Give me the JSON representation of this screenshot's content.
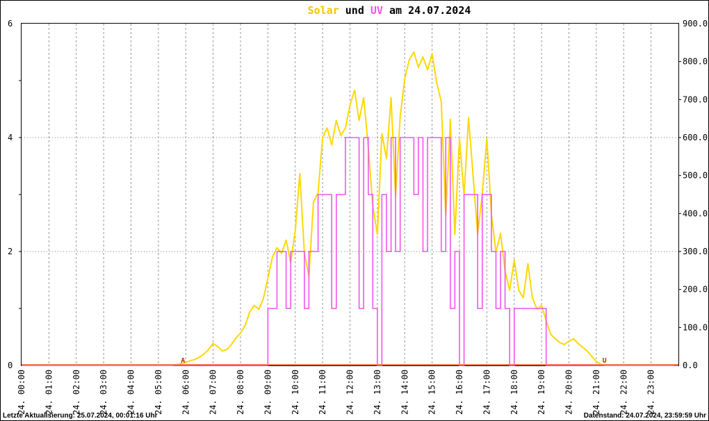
{
  "title": {
    "parts": [
      {
        "text": "Solar",
        "color": "#F5C400"
      },
      {
        "text": " und ",
        "color": "#000000"
      },
      {
        "text": "UV",
        "color": "#EE55EE"
      },
      {
        "text": " am 24.07.2024",
        "color": "#000000"
      }
    ]
  },
  "footer": {
    "left": "Letzte Aktualisierung: 25.07.2024, 00:01:16 Uhr",
    "right": "Datenstand: 24.07.2024, 23:59:59 Uhr"
  },
  "chart_data": {
    "type": "line",
    "title": "Solar und UV am 24.07.2024",
    "x_axis": {
      "range_hours": [
        0,
        24
      ],
      "tick_labels": [
        "24. 00:00",
        "24. 01:00",
        "24. 02:00",
        "24. 03:00",
        "24. 04:00",
        "24. 05:00",
        "24. 06:00",
        "24. 07:00",
        "24. 08:00",
        "24. 09:00",
        "24. 10:00",
        "24. 11:00",
        "24. 12:00",
        "24. 13:00",
        "24. 14:00",
        "24. 15:00",
        "24. 16:00",
        "24. 17:00",
        "24. 18:00",
        "24. 19:00",
        "24. 20:00",
        "24. 21:00",
        "24. 22:00",
        "24. 23:00"
      ]
    },
    "left_axis": {
      "range": [
        0,
        6
      ],
      "ticks": [
        6,
        4,
        2,
        0
      ],
      "minor_ticks": [
        1,
        2,
        3,
        4,
        5
      ],
      "gridlines_at": [
        2,
        4
      ]
    },
    "right_axis": {
      "range": [
        0,
        900
      ],
      "tick_labels": [
        "900.0",
        "800.0",
        "700.0",
        "600.0",
        "500.0",
        "400.0",
        "300.0",
        "200.0",
        "100.0",
        "0.0"
      ],
      "tick_step": 100
    },
    "grid": {
      "vertical_every_hour": true
    },
    "baseline": {
      "value": 0,
      "color": "#FF7853"
    },
    "markers": [
      {
        "label": "A",
        "hour": 5.9,
        "color": "#CC2200"
      },
      {
        "label": "U",
        "hour": 21.3,
        "color": "#CC2200"
      }
    ],
    "series": [
      {
        "name": "Solar",
        "color": "#FFD800",
        "axis": "right",
        "style": "line",
        "interval_minutes": 10,
        "values": [
          0,
          0,
          0,
          0,
          0,
          0,
          0,
          0,
          0,
          0,
          0,
          0,
          0,
          0,
          0,
          0,
          0,
          0,
          0,
          0,
          0,
          0,
          0,
          0,
          0,
          0,
          0,
          0,
          0,
          0,
          0,
          0,
          0,
          0,
          2,
          5,
          8,
          12,
          16,
          22,
          30,
          42,
          58,
          50,
          38,
          42,
          55,
          72,
          85,
          105,
          140,
          158,
          148,
          175,
          230,
          285,
          310,
          295,
          330,
          270,
          355,
          505,
          295,
          235,
          430,
          455,
          600,
          625,
          580,
          645,
          605,
          625,
          685,
          725,
          645,
          705,
          575,
          420,
          345,
          610,
          545,
          705,
          445,
          655,
          755,
          805,
          825,
          785,
          812,
          778,
          820,
          745,
          695,
          395,
          648,
          345,
          598,
          448,
          652,
          498,
          345,
          452,
          598,
          398,
          298,
          348,
          248,
          198,
          278,
          198,
          178,
          268,
          178,
          148,
          158,
          118,
          82,
          70,
          60,
          55,
          64,
          70,
          58,
          48,
          38,
          24,
          10,
          3,
          0,
          0,
          0,
          0,
          0,
          0,
          0,
          0,
          0,
          0,
          0,
          0,
          0,
          0,
          0,
          0
        ]
      },
      {
        "name": "UV",
        "color": "#EE55EE",
        "axis": "left",
        "style": "step",
        "interval_minutes": 10,
        "values": [
          0,
          0,
          0,
          0,
          0,
          0,
          0,
          0,
          0,
          0,
          0,
          0,
          0,
          0,
          0,
          0,
          0,
          0,
          0,
          0,
          0,
          0,
          0,
          0,
          0,
          0,
          0,
          0,
          0,
          0,
          0,
          0,
          0,
          0,
          0,
          0,
          0,
          0,
          0,
          0,
          0,
          0,
          0,
          0,
          0,
          0,
          0,
          0,
          0,
          0,
          0,
          0,
          0,
          0,
          1,
          1,
          2,
          2,
          1,
          2,
          2,
          2,
          1,
          2,
          2,
          3,
          3,
          3,
          1,
          3,
          3,
          4,
          4,
          4,
          1,
          4,
          3,
          1,
          0,
          3,
          2,
          4,
          2,
          4,
          4,
          4,
          3,
          4,
          2,
          4,
          4,
          4,
          2,
          4,
          1,
          2,
          0,
          3,
          3,
          3,
          1,
          3,
          3,
          2,
          1,
          2,
          1,
          0,
          1,
          1,
          1,
          1,
          1,
          1,
          1,
          0,
          0,
          0,
          0,
          0,
          0,
          0,
          0,
          0,
          0,
          0,
          0,
          0,
          0,
          0,
          0,
          0,
          0,
          0,
          0,
          0,
          0,
          0,
          0,
          0,
          0,
          0,
          0,
          0
        ]
      }
    ]
  }
}
